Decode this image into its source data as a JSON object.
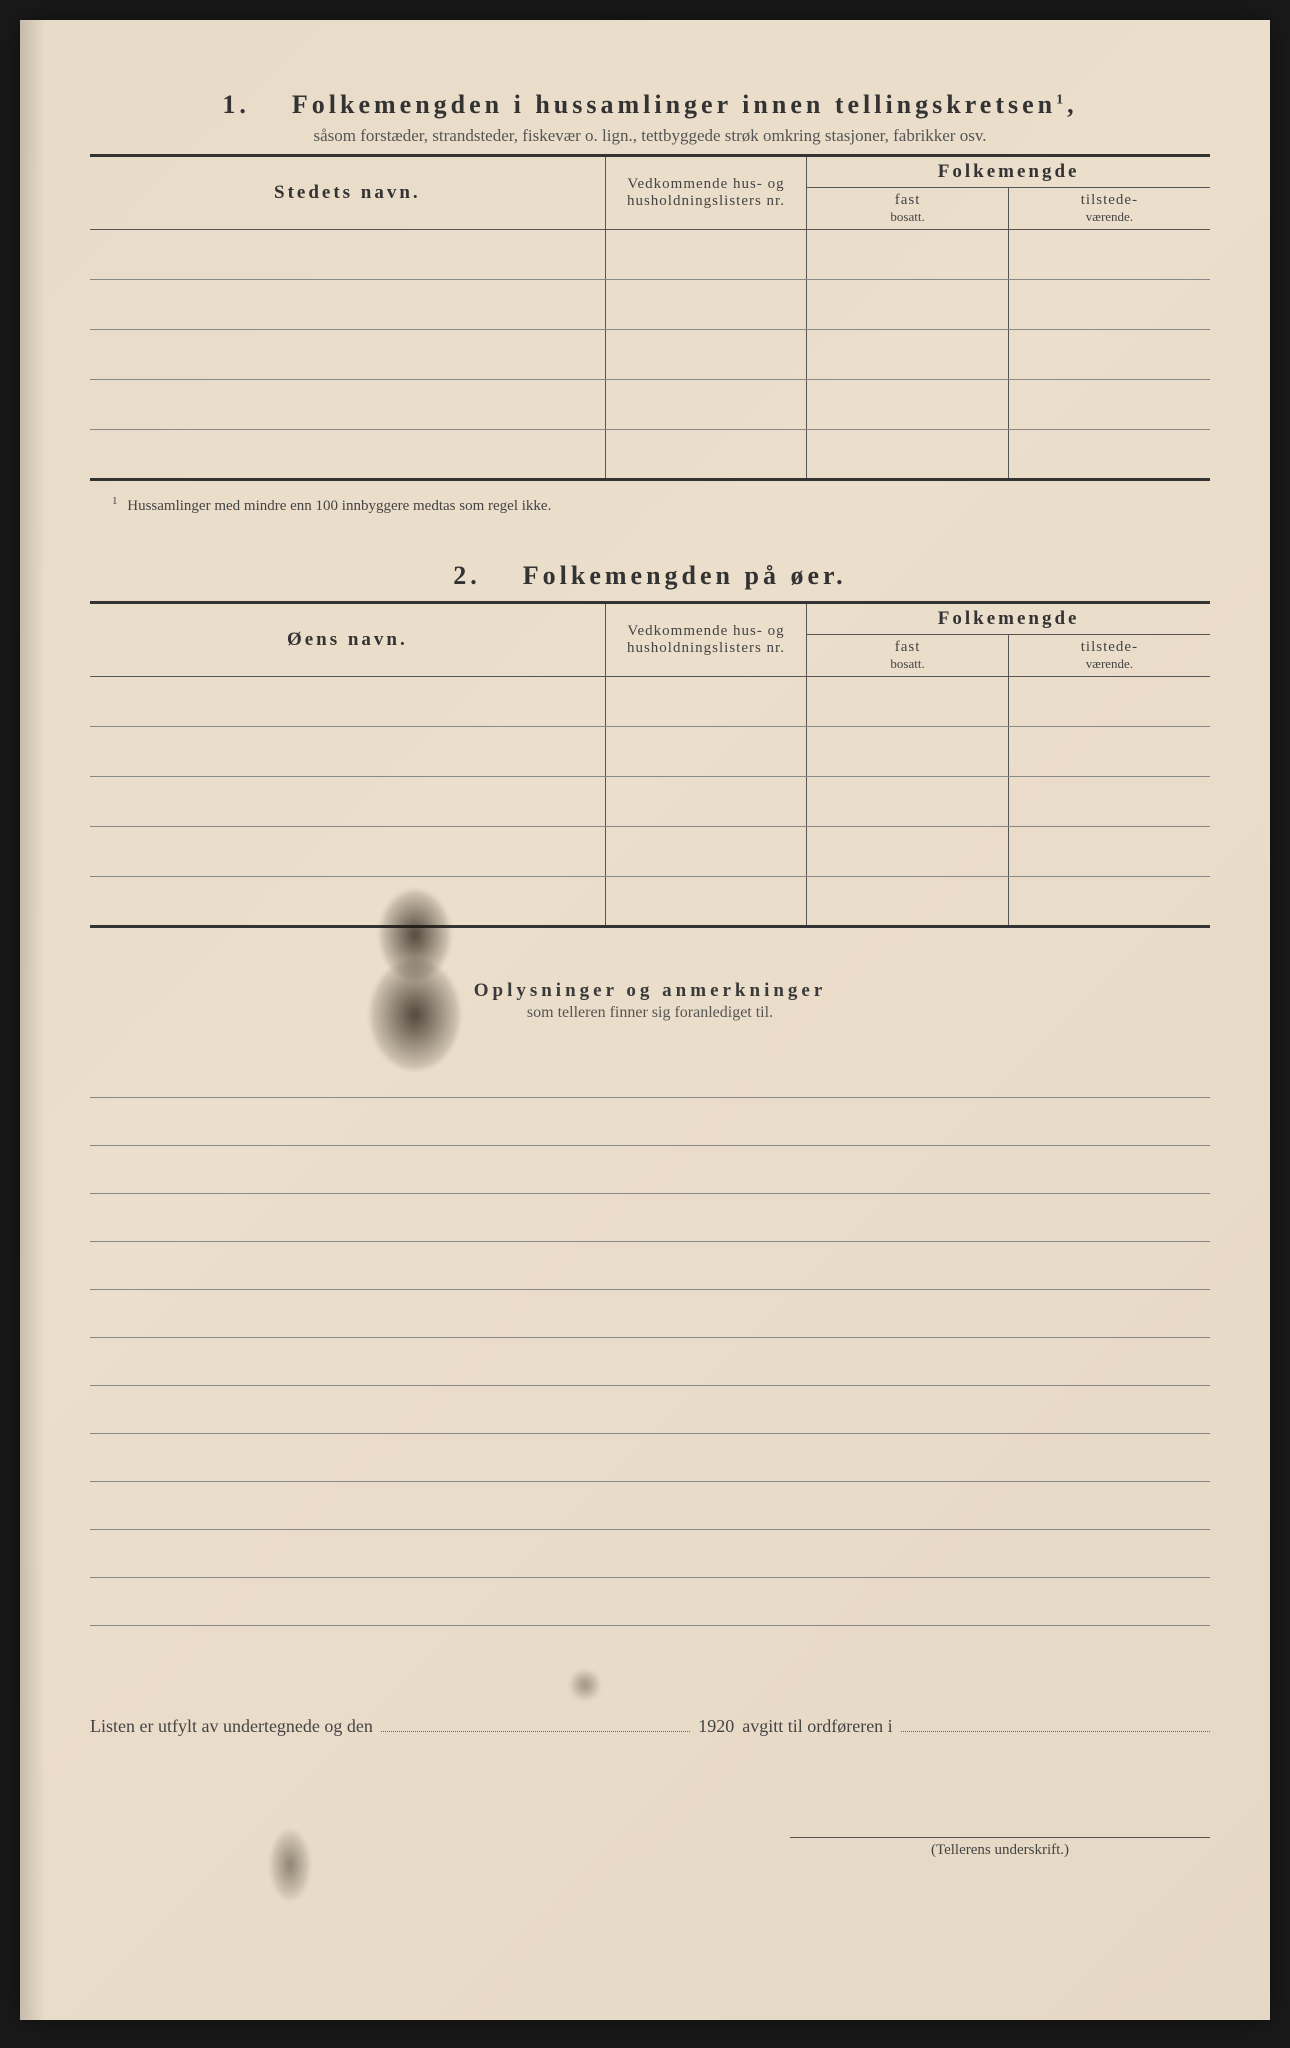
{
  "section1": {
    "number": "1.",
    "title": "Folkemengden i hussamlinger innen tellingskretsen",
    "title_superscript": "1",
    "subtitle": "såsom forstæder, strandsteder, fiskevær o. lign., tettbyggede strøk omkring stasjoner, fabrikker osv.",
    "col_name": "Stedets navn.",
    "col_ref": "Vedkommende hus- og husholdningslisters nr.",
    "col_group": "Folkemengde",
    "col_sub1": "fast",
    "col_sub1_small": "bosatt.",
    "col_sub2": "tilstede-",
    "col_sub2_small": "værende.",
    "row_count": 5,
    "footnote_mark": "1",
    "footnote": "Hussamlinger med mindre enn 100 innbyggere medtas som regel ikke."
  },
  "section2": {
    "number": "2.",
    "title": "Folkemengden på øer.",
    "col_name": "Øens navn.",
    "col_ref": "Vedkommende hus- og husholdningslisters nr.",
    "col_group": "Folkemengde",
    "col_sub1": "fast",
    "col_sub1_small": "bosatt.",
    "col_sub2": "tilstede-",
    "col_sub2_small": "værende.",
    "row_count": 5
  },
  "remarks": {
    "title": "Oplysninger og anmerkninger",
    "subtitle": "som telleren finner sig foranlediget til.",
    "line_count": 12
  },
  "bottom": {
    "text_left": "Listen er utfylt av undertegnede og den",
    "year": "1920",
    "text_right": "avgitt til ordføreren i"
  },
  "signature_label": "(Tellerens underskrift.)",
  "style": {
    "paper_color": "#e8dcc8",
    "ink_color": "#333333",
    "light_ink": "#555555",
    "rule_color": "#888888",
    "title_fontsize": 26,
    "subtitle_fontsize": 17,
    "header_fontsize": 19,
    "body_fontsize": 17,
    "footnote_fontsize": 15,
    "letter_spacing_title": 4,
    "col_widths_percent": [
      46,
      18,
      18,
      18
    ]
  }
}
